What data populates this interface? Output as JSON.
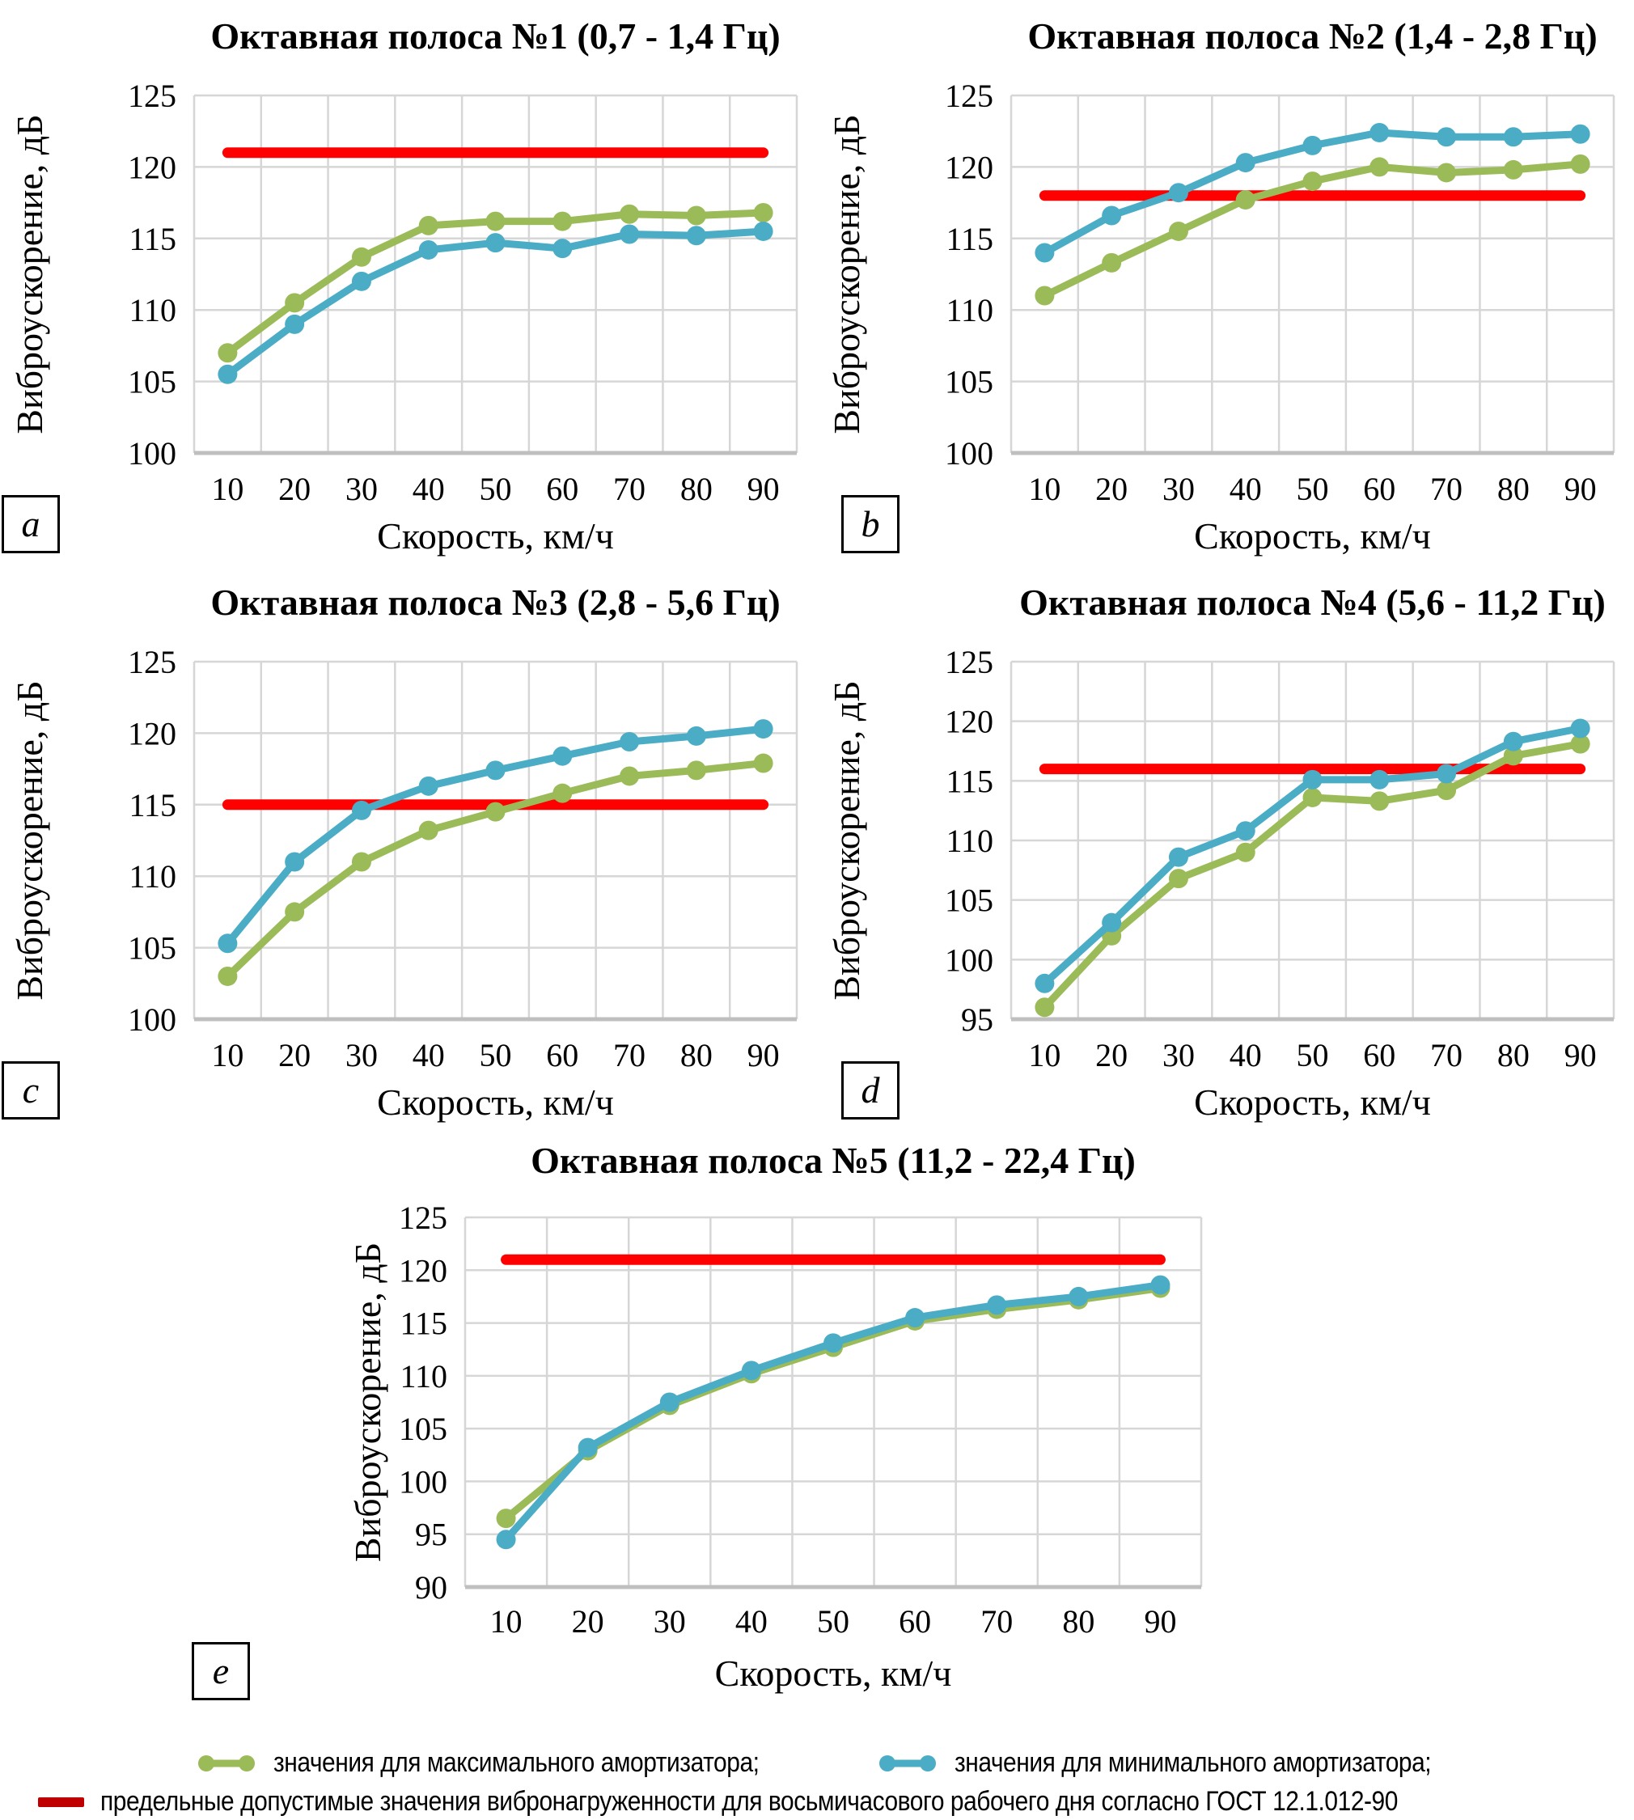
{
  "colors": {
    "series_max_green": "#9BBB59",
    "series_min_blue": "#4BACC6",
    "limit_red": "#FF0000",
    "legend_limit_red": "#C00000",
    "grid": "#D6D6D6",
    "axis_line": "#BFBFBF",
    "text": "#000000"
  },
  "legend": {
    "max_label": "значения для максимального амортизатора;",
    "min_label": "значения для минимального амортизатора;",
    "limit_label": "предельные допустимые значения вибронагруженности для восьмичасового рабочего дня согласно ГОСТ 12.1.012-90"
  },
  "chart_data": [
    {
      "id": "a",
      "figure_label": "a",
      "type": "line",
      "title": "Октавная полоса №1 (0,7 - 1,4 Гц)",
      "ylabel": "Виброускорение, дБ",
      "xlabel": "Скорость, км/ч",
      "categories": [
        10,
        20,
        30,
        40,
        50,
        60,
        70,
        80,
        90
      ],
      "ymin": 100,
      "ymax": 125,
      "ystep": 5,
      "limit_value": 121,
      "series": [
        {
          "name": "значения для максимального амортизатора",
          "color": "green",
          "values": [
            107.0,
            110.5,
            113.7,
            115.9,
            116.2,
            116.2,
            116.7,
            116.6,
            116.8
          ]
        },
        {
          "name": "значения для минимального амортизатора",
          "color": "blue",
          "values": [
            105.5,
            109.0,
            112.0,
            114.2,
            114.7,
            114.3,
            115.3,
            115.2,
            115.5
          ]
        }
      ]
    },
    {
      "id": "b",
      "figure_label": "b",
      "type": "line",
      "title": "Октавная полоса №2 (1,4 - 2,8 Гц)",
      "ylabel": "Виброускорение, дБ",
      "xlabel": "Скорость, км/ч",
      "categories": [
        10,
        20,
        30,
        40,
        50,
        60,
        70,
        80,
        90
      ],
      "ymin": 100,
      "ymax": 125,
      "ystep": 5,
      "limit_value": 118,
      "series": [
        {
          "name": "значения для максимального амортизатора",
          "color": "green",
          "values": [
            111.0,
            113.3,
            115.5,
            117.7,
            119.0,
            120.0,
            119.6,
            119.8,
            120.2
          ]
        },
        {
          "name": "значения для минимального амортизатора",
          "color": "blue",
          "values": [
            114.0,
            116.6,
            118.2,
            120.3,
            121.5,
            122.4,
            122.1,
            122.1,
            122.3
          ]
        }
      ]
    },
    {
      "id": "c",
      "figure_label": "c",
      "type": "line",
      "title": "Октавная полоса №3 (2,8 - 5,6 Гц)",
      "ylabel": "Виброускорение, дБ",
      "xlabel": "Скорость, км/ч",
      "categories": [
        10,
        20,
        30,
        40,
        50,
        60,
        70,
        80,
        90
      ],
      "ymin": 100,
      "ymax": 125,
      "ystep": 5,
      "limit_value": 115,
      "series": [
        {
          "name": "значения для максимального амортизатора",
          "color": "green",
          "values": [
            103.0,
            107.5,
            111.0,
            113.2,
            114.5,
            115.8,
            117.0,
            117.4,
            117.9
          ]
        },
        {
          "name": "значения для минимального амортизатора",
          "color": "blue",
          "values": [
            105.3,
            111.0,
            114.6,
            116.3,
            117.4,
            118.4,
            119.4,
            119.8,
            120.3
          ]
        }
      ]
    },
    {
      "id": "d",
      "figure_label": "d",
      "type": "line",
      "title": "Октавная полоса №4 (5,6 - 11,2 Гц)",
      "ylabel": "Виброускорение, дБ",
      "xlabel": "Скорость, км/ч",
      "categories": [
        10,
        20,
        30,
        40,
        50,
        60,
        70,
        80,
        90
      ],
      "ymin": 95,
      "ymax": 125,
      "ystep": 5,
      "limit_value": 116,
      "series": [
        {
          "name": "значения для максимального амортизатора",
          "color": "green",
          "values": [
            96.0,
            102.0,
            106.8,
            109.0,
            113.6,
            113.3,
            114.2,
            117.1,
            118.1
          ]
        },
        {
          "name": "значения для минимального амортизатора",
          "color": "blue",
          "values": [
            98.0,
            103.1,
            108.6,
            110.8,
            115.1,
            115.1,
            115.6,
            118.3,
            119.4
          ]
        }
      ]
    },
    {
      "id": "e",
      "figure_label": "e",
      "type": "line",
      "title": "Октавная полоса №5 (11,2 - 22,4 Гц)",
      "ylabel": "Виброускорение, дБ",
      "xlabel": "Скорость, км/ч",
      "categories": [
        10,
        20,
        30,
        40,
        50,
        60,
        70,
        80,
        90
      ],
      "ymin": 90,
      "ymax": 125,
      "ystep": 5,
      "limit_value": 121,
      "series": [
        {
          "name": "значения для максимального амортизатора",
          "color": "green",
          "values": [
            96.5,
            102.9,
            107.2,
            110.2,
            112.7,
            115.2,
            116.3,
            117.2,
            118.3
          ]
        },
        {
          "name": "значения для минимального амортизатора",
          "color": "blue",
          "values": [
            94.5,
            103.2,
            107.5,
            110.5,
            113.1,
            115.5,
            116.7,
            117.5,
            118.6
          ]
        }
      ]
    }
  ]
}
